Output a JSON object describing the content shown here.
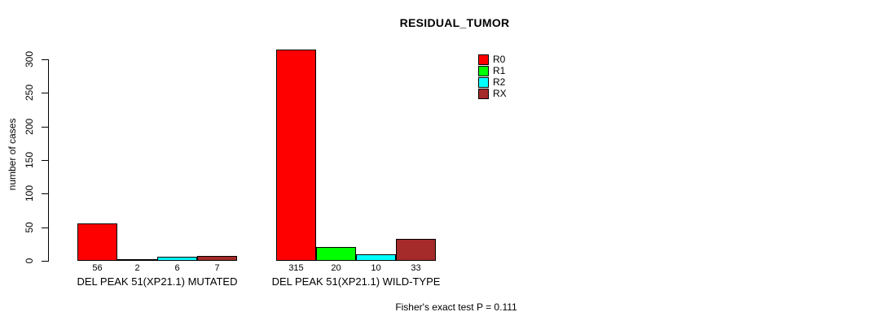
{
  "chart_data": {
    "type": "bar",
    "title": "RESIDUAL_TUMOR",
    "xlabel": "",
    "ylabel": "number of cases",
    "categories": [
      "DEL PEAK 51(XP21.1) MUTATED",
      "DEL PEAK 51(XP21.1) WILD-TYPE"
    ],
    "series": [
      {
        "name": "R0",
        "color": "#ff0000",
        "values": [
          56,
          315
        ]
      },
      {
        "name": "R1",
        "color": "#00ff00",
        "values": [
          2,
          20
        ]
      },
      {
        "name": "R2",
        "color": "#00ffff",
        "values": [
          6,
          10
        ]
      },
      {
        "name": "RX",
        "color": "#a52a2a",
        "values": [
          7,
          33
        ]
      }
    ],
    "ylim": [
      0,
      300
    ],
    "yticks": [
      0,
      50,
      100,
      150,
      200,
      250,
      300
    ],
    "bar_value_labels": true,
    "grid": false,
    "legend_position": "top-right",
    "annotation": "Fisher's exact test P = 0.111"
  }
}
